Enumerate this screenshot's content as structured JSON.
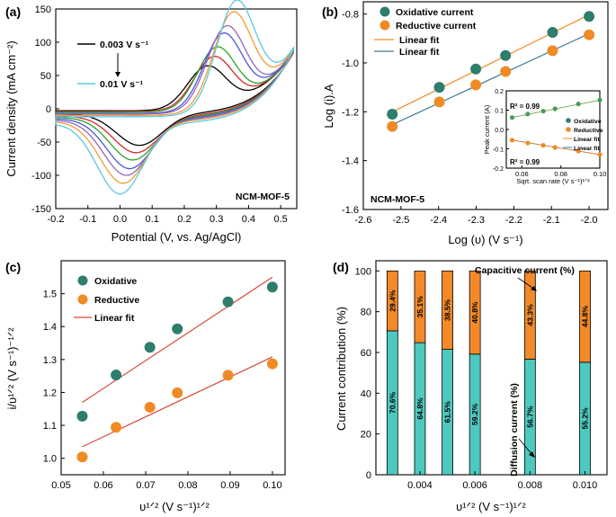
{
  "colors": {
    "oxidative": "#2e7d6d",
    "reductive": "#f08a24",
    "fit_orange": "#f08a24",
    "fit_teal": "#3d7a96",
    "fit_red": "#d84a3a",
    "bar_diffusion": "#4ec9c0",
    "bar_capacitive": "#f28a2a",
    "cv": [
      "#000000",
      "#d62728",
      "#2ca02c",
      "#4b55d6",
      "#9467bd",
      "#f39c33",
      "#5ac8e0"
    ]
  },
  "chart_data": [
    {
      "panel": "(a)",
      "type": "line",
      "xlabel": "Potential (V, vs. Ag/AgCl)",
      "ylabel": "Current density (mA cm⁻²)",
      "xlim": [
        -0.2,
        0.55
      ],
      "ylim": [
        -150,
        150
      ],
      "xticks": [
        "-0.2",
        "-0.1",
        "0.0",
        "0.1",
        "0.2",
        "0.3",
        "0.4",
        "0.5"
      ],
      "yticks": [
        "-150",
        "-100",
        "-50",
        "0",
        "50",
        "100",
        "150"
      ],
      "label_top": "0.003 V s⁻¹",
      "label_bottom": "0.01 V s⁻¹",
      "sample": "NCM-MOF-5",
      "curves": [
        {
          "anodic_peak": [
            0.27,
            62
          ],
          "cathodic_peak": [
            0.06,
            -55
          ],
          "start": -3,
          "end": 85,
          "low_x": -8
        },
        {
          "anodic_peak": [
            0.29,
            75
          ],
          "cathodic_peak": [
            0.05,
            -66
          ],
          "start": -4,
          "end": 86,
          "low_x": -11
        },
        {
          "anodic_peak": [
            0.3,
            89
          ],
          "cathodic_peak": [
            0.04,
            -77
          ],
          "start": -5,
          "end": 87,
          "low_x": -13
        },
        {
          "anodic_peak": [
            0.32,
            108
          ],
          "cathodic_peak": [
            0.03,
            -90
          ],
          "start": -7,
          "end": 88,
          "low_x": -15
        },
        {
          "anodic_peak": [
            0.33,
            118
          ],
          "cathodic_peak": [
            0.02,
            -100
          ],
          "start": -8,
          "end": 88,
          "low_x": -17
        },
        {
          "anodic_peak": [
            0.35,
            136
          ],
          "cathodic_peak": [
            0.01,
            -112
          ],
          "start": -10,
          "end": 89,
          "low_x": -19
        },
        {
          "anodic_peak": [
            0.36,
            152
          ],
          "cathodic_peak": [
            0.0,
            -128
          ],
          "start": -12,
          "end": 90,
          "low_x": -22
        }
      ]
    },
    {
      "panel": "(b)",
      "type": "scatter",
      "xlabel": "Log (υ) (V s⁻¹)",
      "ylabel": "Log (i).A",
      "xlim": [
        -2.6,
        -1.95
      ],
      "ylim": [
        -1.6,
        -0.75
      ],
      "xticks": [
        "-2.6",
        "-2.5",
        "-2.4",
        "-2.3",
        "-2.2",
        "-2.1",
        "-2.0"
      ],
      "yticks": [
        "-1.6",
        "-1.4",
        "-1.2",
        "-1.0",
        "-0.8"
      ],
      "sample": "NCM-MOF-5",
      "x": [
        -2.523,
        -2.398,
        -2.301,
        -2.222,
        -2.097,
        -2.0
      ],
      "series": [
        {
          "name": "Oxidative current",
          "values": [
            -1.21,
            -1.1,
            -1.025,
            -0.97,
            -0.875,
            -0.81
          ]
        },
        {
          "name": "Reductive current",
          "values": [
            -1.26,
            -1.16,
            -1.09,
            -1.035,
            -0.95,
            -0.885
          ]
        }
      ],
      "fit_label": "Linear fit",
      "inset": {
        "xlabel": "Sqrt. scan rate (V s⁻¹)¹ᐟ²",
        "ylabel": "Peak current (A)",
        "xlim": [
          0.052,
          0.1
        ],
        "ylim": [
          -0.2,
          0.2
        ],
        "xticks": [
          "0.06",
          "0.08",
          "0.10"
        ],
        "yticks": [
          "-0.2",
          "-0.1",
          "0.0",
          "0.1",
          "0.2"
        ],
        "x": [
          0.055,
          0.063,
          0.071,
          0.077,
          0.089,
          0.1
        ],
        "series": [
          {
            "name": "Oxidative",
            "values": [
              0.062,
              0.08,
              0.095,
              0.107,
              0.132,
              0.152
            ]
          },
          {
            "name": "Reductive",
            "values": [
              -0.055,
              -0.07,
              -0.082,
              -0.093,
              -0.112,
              -0.13
            ]
          }
        ],
        "fit_label": "Linear fit",
        "r2_top": "R² = 0.99",
        "r2_bottom": "R² = 0.99"
      }
    },
    {
      "panel": "(c)",
      "type": "scatter",
      "xlabel": "υ¹ᐟ² (V s⁻¹)¹ᐟ²",
      "ylabel": "i/υ¹ᐟ² (V s⁻¹)⁻¹ᐟ²",
      "xlim": [
        0.05,
        0.103
      ],
      "ylim": [
        0.95,
        1.6
      ],
      "xticks": [
        "0.05",
        "0.06",
        "0.07",
        "0.08",
        "0.09",
        "0.10"
      ],
      "yticks": [
        "1.0",
        "1.1",
        "1.2",
        "1.3",
        "1.4",
        "1.5"
      ],
      "x": [
        0.055,
        0.063,
        0.071,
        0.0775,
        0.0895,
        0.1
      ],
      "series": [
        {
          "name": "Oxidative",
          "values": [
            1.128,
            1.253,
            1.337,
            1.393,
            1.475,
            1.52
          ]
        },
        {
          "name": "Reductive",
          "values": [
            1.004,
            1.094,
            1.155,
            1.199,
            1.252,
            1.287
          ]
        }
      ],
      "fit_label": "Linear fit",
      "fits": [
        [
          0.055,
          1.17,
          0.1,
          1.55
        ],
        [
          0.055,
          1.035,
          0.1,
          1.308
        ]
      ]
    },
    {
      "panel": "(d)",
      "type": "bar",
      "xlabel": "υ¹ᐟ² (V s⁻¹)¹ᐟ²",
      "ylabel": "Current contribution (%)",
      "ylim": [
        0,
        105
      ],
      "xticks": [
        "0.004",
        "0.006",
        "0.008",
        "0.010"
      ],
      "yticks": [
        "0",
        "20",
        "40",
        "60",
        "80",
        "100"
      ],
      "categories": [
        "0.003",
        "0.004",
        "0.005",
        "0.006",
        "0.008",
        "0.010"
      ],
      "series": [
        {
          "name": "Diffusion current (%)",
          "values": [
            70.6,
            64.8,
            61.5,
            59.2,
            56.7,
            55.2
          ],
          "labels": [
            "70.6%",
            "64.8%",
            "61.5%",
            "59.2%",
            "56.7%",
            "55.2%"
          ]
        },
        {
          "name": "Capacitive current (%)",
          "values": [
            29.4,
            35.1,
            38.5,
            40.8,
            43.3,
            44.8
          ],
          "labels": [
            "29.4%",
            "35.1%",
            "38.5%",
            "40.8%",
            "43.3%",
            "44.8%"
          ]
        }
      ]
    }
  ]
}
